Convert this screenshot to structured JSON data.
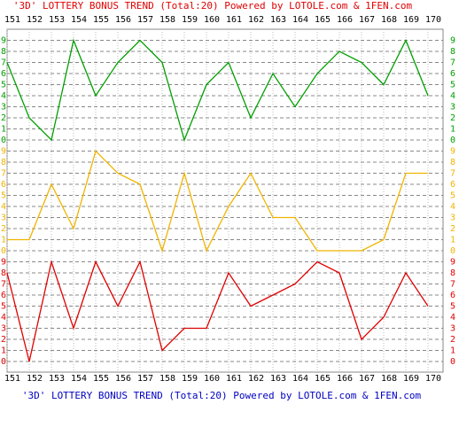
{
  "chart_data": {
    "type": "line",
    "title": "'3D' LOTTERY BONUS TREND (Total:20)  Powered by LOTOLE.com & 1FEN.com",
    "categories": [
      "151",
      "152",
      "153",
      "154",
      "155",
      "156",
      "157",
      "158",
      "159",
      "160",
      "161",
      "162",
      "163",
      "164",
      "165",
      "166",
      "167",
      "168",
      "169",
      "170"
    ],
    "ylim": [
      0,
      9
    ],
    "yticks": [
      0,
      1,
      2,
      3,
      4,
      5,
      6,
      7,
      8,
      9
    ],
    "grid": true,
    "series": [
      {
        "color": "#00a000",
        "values": [
          7,
          2,
          0,
          9,
          4,
          7,
          9,
          7,
          0,
          5,
          7,
          2,
          6,
          3,
          6,
          8,
          7,
          5,
          9,
          4
        ]
      },
      {
        "color": "#f0b400",
        "values": [
          1,
          1,
          6,
          2,
          9,
          7,
          6,
          0,
          7,
          0,
          4,
          7,
          3,
          3,
          0,
          0,
          0,
          1,
          7,
          7
        ]
      },
      {
        "color": "#e00000",
        "values": [
          8,
          0,
          9,
          3,
          9,
          5,
          9,
          1,
          3,
          3,
          8,
          5,
          6,
          7,
          9,
          8,
          2,
          4,
          8,
          5
        ]
      }
    ]
  }
}
